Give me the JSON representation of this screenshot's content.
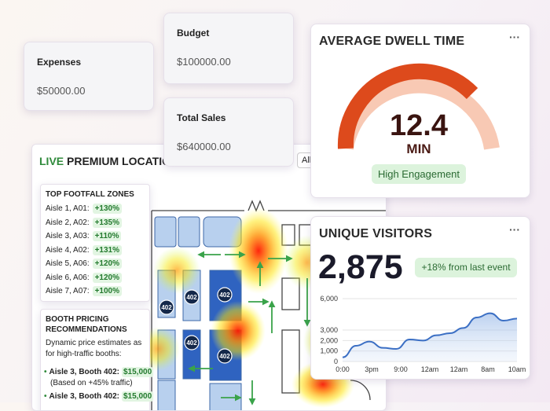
{
  "cards": {
    "expenses": {
      "label": "Expenses",
      "value": "$50000.00"
    },
    "budget": {
      "label": "Budget",
      "value": "$100000.00"
    },
    "total_sales": {
      "label": "Total Sales",
      "value": "$640000.00"
    }
  },
  "dwell": {
    "title": "AVERAGE DWELL TIME",
    "menu": "···",
    "value": "12.4",
    "unit": "MIN",
    "badge": "High Engagement"
  },
  "visitors": {
    "title": "UNIQUE VISITORS",
    "menu": "···",
    "value": "2,875",
    "badge": "+18% from last event",
    "chart": {
      "type": "line",
      "categories": [
        "0:00",
        "3pm",
        "9:00",
        "12am",
        "12am",
        "8am",
        "10am"
      ],
      "values": [
        400,
        1500,
        1900,
        1300,
        1200,
        2100,
        2000,
        2500,
        2700,
        3200,
        4200,
        4600,
        3900,
        4100
      ],
      "ylim": [
        0,
        6000
      ],
      "yticks": [
        {
          "value": 0,
          "label": "0"
        },
        {
          "value": 1000,
          "label": "1,000"
        },
        {
          "value": 2000,
          "label": "2,000"
        },
        {
          "value": 3000,
          "label": "3,000"
        },
        {
          "value": 6000,
          "label": "6,000"
        }
      ],
      "color": "#3b6fc4",
      "grid": true
    }
  },
  "live": {
    "title_accent": "LIVE",
    "title_rest": "PREMIUM LOCATIONS",
    "button": "All",
    "zones": {
      "title": "TOP FOOTFALL ZONES",
      "items": [
        {
          "name": "Aisle 1, A01:",
          "delta": "+130%"
        },
        {
          "name": "Aisle 2, A02:",
          "delta": "+135%"
        },
        {
          "name": "Aisle 3, A03:",
          "delta": "+110%"
        },
        {
          "name": "Aisle 4, A02:",
          "delta": "+131%"
        },
        {
          "name": "Aisle 5, A06:",
          "delta": "+120%"
        },
        {
          "name": "Aisle 6, A06:",
          "delta": "+120%"
        },
        {
          "name": "Aisle 7, A07:",
          "delta": "+100%"
        }
      ]
    },
    "pricing": {
      "title": "BOOTH PRICING RECOMMENDATIONS",
      "description": "Dynamic price estimates as for high-traffic booths:",
      "items": [
        {
          "name": "Aisle 3, Booth 402:",
          "price": "$15,000",
          "note": "(Based on +45% traffic)"
        },
        {
          "name": "Aisle 3, Booth 402:",
          "price": "$15,000"
        }
      ]
    },
    "booths": [
      "402",
      "402",
      "402",
      "402",
      "402"
    ]
  }
}
